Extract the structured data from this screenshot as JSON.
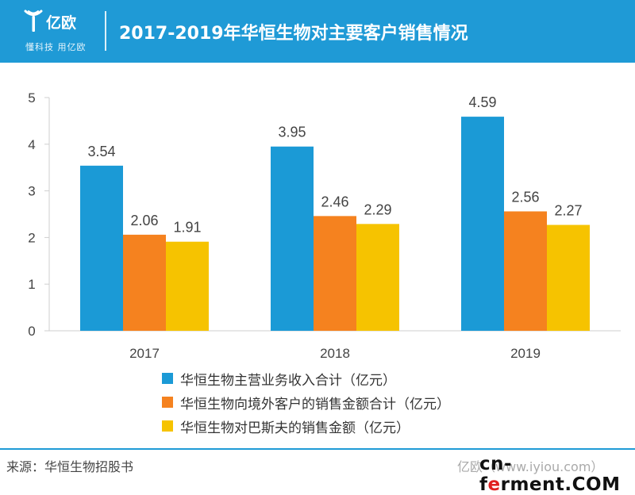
{
  "header": {
    "logo_name": "亿欧",
    "logo_tagline": "懂科技 用亿欧",
    "title": "2017-2019年华恒生物对主要客户销售情况"
  },
  "chart_data": {
    "type": "bar",
    "title": "2017-2019年华恒生物对主要客户销售情况",
    "categories": [
      "2017",
      "2018",
      "2019"
    ],
    "series": [
      {
        "name": "华恒生物主营业务收入合计（亿元）",
        "color": "#1b9ad6",
        "values": [
          3.54,
          3.95,
          4.59
        ],
        "labels": [
          "3.54",
          "3.95",
          "4.59"
        ]
      },
      {
        "name": "华恒生物向境外客户的销售金额合计（亿元）",
        "color": "#f5821f",
        "values": [
          2.06,
          2.46,
          2.56
        ],
        "labels": [
          "2.06",
          "2.46",
          "2.56"
        ]
      },
      {
        "name": "华恒生物对巴斯夫的销售金额（亿元）",
        "color": "#f6c300",
        "values": [
          1.91,
          2.29,
          2.27
        ],
        "labels": [
          "1.91",
          "2.29",
          "2.27"
        ]
      }
    ],
    "ylim": [
      0,
      5
    ],
    "yticks": [
      0,
      1,
      2,
      3,
      4,
      5
    ],
    "xlabel": "",
    "ylabel": "",
    "grid": false,
    "legend_position": "bottom"
  },
  "footer": {
    "source": "来源：华恒生物招股书",
    "watermark": "亿欧（www.iyiou.com）",
    "brand_prefix": "cn-f",
    "brand_accent": "e",
    "brand_suffix": "rment.COM"
  }
}
